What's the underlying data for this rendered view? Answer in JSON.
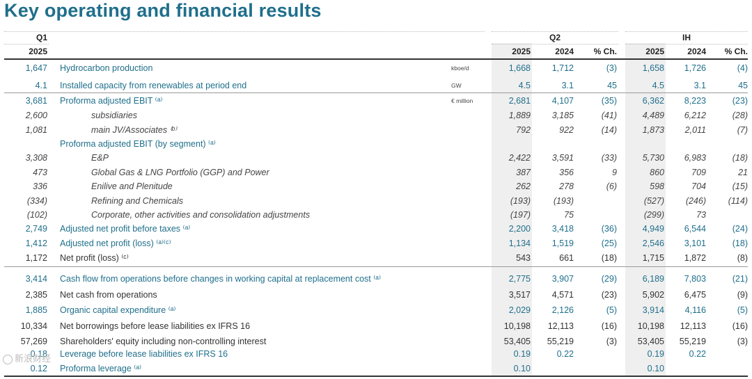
{
  "title": "Key operating and financial results",
  "headers": {
    "q1": "Q1",
    "q1_year": "2025",
    "q2": "Q2",
    "h1": "IH",
    "y2025": "2025",
    "y2024": "2024",
    "pct": "% Ch."
  },
  "rows": [
    {
      "q1": "1,647",
      "label": "Hydrocarbon production",
      "unit": "kboe/d",
      "q2_25": "1,668",
      "q2_24": "1,712",
      "q2_ch": "(3)",
      "h1_25": "1,658",
      "h1_24": "1,726",
      "h1_ch": "(4)",
      "style": "blue"
    },
    {
      "q1": "4.1",
      "label": "Installed capacity from renewables at period end",
      "unit": "GW",
      "q2_25": "4.5",
      "q2_24": "3.1",
      "q2_ch": "45",
      "h1_25": "4.5",
      "h1_24": "3.1",
      "h1_ch": "45",
      "style": "blue"
    },
    {
      "q1": "3,681",
      "label": "Proforma adjusted EBIT ⁽ᵃ⁾",
      "unit": "€ million",
      "q2_25": "2,681",
      "q2_24": "4,107",
      "q2_ch": "(35)",
      "h1_25": "6,362",
      "h1_24": "8,223",
      "h1_ch": "(23)",
      "style": "blue"
    },
    {
      "q1": "2,600",
      "label": "subsidiaries",
      "unit": "",
      "q2_25": "1,889",
      "q2_24": "3,185",
      "q2_ch": "(41)",
      "h1_25": "4,489",
      "h1_24": "6,212",
      "h1_ch": "(28)",
      "style": "ital"
    },
    {
      "q1": "1,081",
      "label": "main JV/Associates ⁽ᵇ⁾",
      "unit": "",
      "q2_25": "792",
      "q2_24": "922",
      "q2_ch": "(14)",
      "h1_25": "1,873",
      "h1_24": "2,011",
      "h1_ch": "(7)",
      "style": "ital"
    },
    {
      "q1": "",
      "label": "Proforma adjusted EBIT (by segment) ⁽ᵃ⁾",
      "unit": "",
      "q2_25": "",
      "q2_24": "",
      "q2_ch": "",
      "h1_25": "",
      "h1_24": "",
      "h1_ch": "",
      "style": "blue"
    },
    {
      "q1": "3,308",
      "label": "E&P",
      "unit": "",
      "q2_25": "2,422",
      "q2_24": "3,591",
      "q2_ch": "(33)",
      "h1_25": "5,730",
      "h1_24": "6,983",
      "h1_ch": "(18)",
      "style": "ital"
    },
    {
      "q1": "473",
      "label": "Global Gas & LNG Portfolio (GGP) and Power",
      "unit": "",
      "q2_25": "387",
      "q2_24": "356",
      "q2_ch": "9",
      "h1_25": "860",
      "h1_24": "709",
      "h1_ch": "21",
      "style": "ital"
    },
    {
      "q1": "336",
      "label": "Enilive and Plenitude",
      "unit": "",
      "q2_25": "262",
      "q2_24": "278",
      "q2_ch": "(6)",
      "h1_25": "598",
      "h1_24": "704",
      "h1_ch": "(15)",
      "style": "ital"
    },
    {
      "q1": "(334)",
      "label": "Refining and Chemicals",
      "unit": "",
      "q2_25": "(193)",
      "q2_24": "(193)",
      "q2_ch": "",
      "h1_25": "(527)",
      "h1_24": "(246)",
      "h1_ch": "(114)",
      "style": "ital"
    },
    {
      "q1": "(102)",
      "label": "Corporate, other activities and consolidation adjustments",
      "unit": "",
      "q2_25": "(197)",
      "q2_24": "75",
      "q2_ch": "",
      "h1_25": "(299)",
      "h1_24": "73",
      "h1_ch": "",
      "style": "ital"
    },
    {
      "q1": "2,749",
      "label": "Adjusted net profit before taxes ⁽ᵃ⁾",
      "unit": "",
      "q2_25": "2,200",
      "q2_24": "3,418",
      "q2_ch": "(36)",
      "h1_25": "4,949",
      "h1_24": "6,544",
      "h1_ch": "(24)",
      "style": "blue"
    },
    {
      "q1": "1,412",
      "label": "Adjusted net profit (loss) ⁽ᵃ⁾⁽ᶜ⁾",
      "unit": "",
      "q2_25": "1,134",
      "q2_24": "1,519",
      "q2_ch": "(25)",
      "h1_25": "2,546",
      "h1_24": "3,101",
      "h1_ch": "(18)",
      "style": "blue"
    },
    {
      "q1": "1,172",
      "label": "Net profit (loss) ⁽ᶜ⁾",
      "unit": "",
      "q2_25": "543",
      "q2_24": "661",
      "q2_ch": "(18)",
      "h1_25": "1,715",
      "h1_24": "1,872",
      "h1_ch": "(8)",
      "style": "dark"
    },
    {
      "q1": "3,414",
      "label": "Cash flow from operations before changes in working capital at replacement cost ⁽ᵃ⁾",
      "unit": "",
      "q2_25": "2,775",
      "q2_24": "3,907",
      "q2_ch": "(29)",
      "h1_25": "6,189",
      "h1_24": "7,803",
      "h1_ch": "(21)",
      "style": "blue"
    },
    {
      "q1": "2,385",
      "label": "Net cash from operations",
      "unit": "",
      "q2_25": "3,517",
      "q2_24": "4,571",
      "q2_ch": "(23)",
      "h1_25": "5,902",
      "h1_24": "6,475",
      "h1_ch": "(9)",
      "style": "dark"
    },
    {
      "q1": "1,885",
      "label": "Organic capital expenditure ⁽ᵃ⁾",
      "unit": "",
      "q2_25": "2,029",
      "q2_24": "2,126",
      "q2_ch": "(5)",
      "h1_25": "3,914",
      "h1_24": "4,116",
      "h1_ch": "(5)",
      "style": "blue"
    },
    {
      "q1": "10,334",
      "label": "Net borrowings before lease liabilities ex IFRS 16",
      "unit": "",
      "q2_25": "10,198",
      "q2_24": "12,113",
      "q2_ch": "(16)",
      "h1_25": "10,198",
      "h1_24": "12,113",
      "h1_ch": "(16)",
      "style": "dark"
    },
    {
      "q1": "57,269",
      "label": "Shareholders' equity including non-controlling interest",
      "unit": "",
      "q2_25": "53,405",
      "q2_24": "55,219",
      "q2_ch": "(3)",
      "h1_25": "53,405",
      "h1_24": "55,219",
      "h1_ch": "(3)",
      "style": "dark"
    },
    {
      "q1": "0.18",
      "label": "Leverage before lease liabilities ex IFRS 16",
      "unit": "",
      "q2_25": "0.19",
      "q2_24": "0.22",
      "q2_ch": "",
      "h1_25": "0.19",
      "h1_24": "0.22",
      "h1_ch": "",
      "style": "blue"
    },
    {
      "q1": "0.12",
      "label": "Proforma leverage ⁽ᵃ⁾",
      "unit": "",
      "q2_25": "0.10",
      "q2_24": "",
      "q2_ch": "",
      "h1_25": "0.10",
      "h1_24": "",
      "h1_ch": "",
      "style": "blue"
    }
  ],
  "watermark": "新浪财经"
}
